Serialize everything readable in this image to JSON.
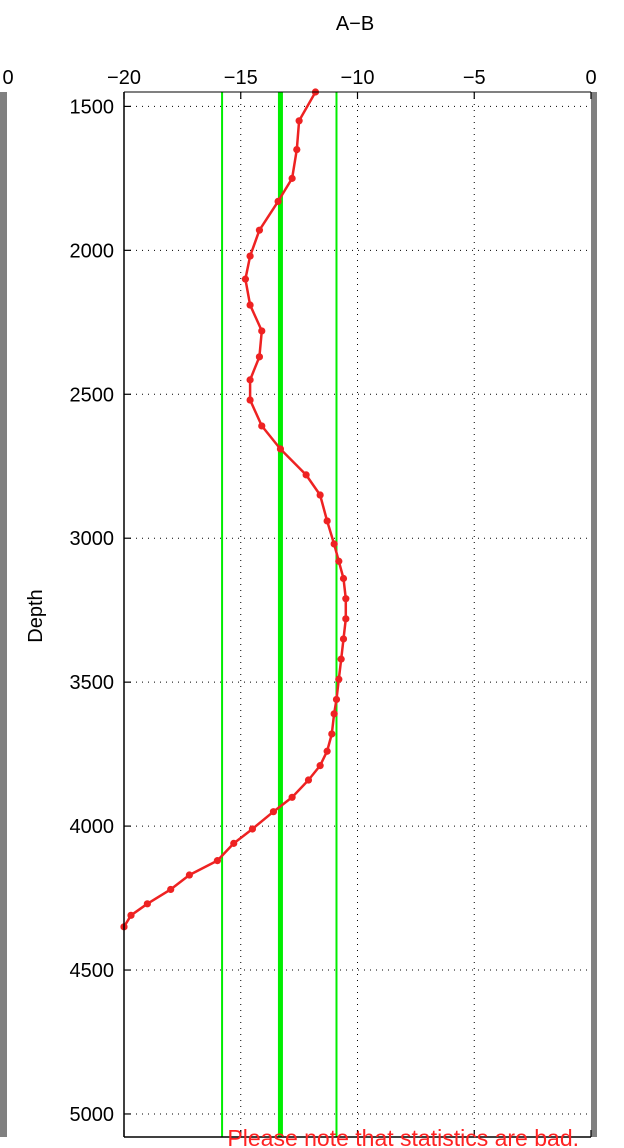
{
  "chart_data": {
    "type": "line",
    "title": "A−B",
    "xlabel": "",
    "ylabel": "Depth",
    "xlim": [
      -20,
      0
    ],
    "ylim": [
      1450,
      5080
    ],
    "y_reversed": true,
    "x_ticks": [
      -20,
      -15,
      -10,
      -5,
      0
    ],
    "x_tick_labels": [
      "−20",
      "−15",
      "−10",
      "−5",
      "0"
    ],
    "y_ticks": [
      1500,
      2000,
      2500,
      3000,
      3500,
      4000,
      4500,
      5000
    ],
    "y_tick_labels": [
      "1500",
      "2000",
      "2500",
      "3000",
      "3500",
      "4000",
      "4500",
      "5000"
    ],
    "left_clip_label": "0",
    "grid": true,
    "grid_style": "dotted",
    "series": [
      {
        "color": "#ee2222",
        "marker": "circle",
        "points": [
          [
            -11.8,
            1450
          ],
          [
            -12.5,
            1550
          ],
          [
            -12.6,
            1650
          ],
          [
            -12.8,
            1750
          ],
          [
            -13.4,
            1830
          ],
          [
            -14.2,
            1930
          ],
          [
            -14.6,
            2020
          ],
          [
            -14.8,
            2100
          ],
          [
            -14.6,
            2190
          ],
          [
            -14.1,
            2280
          ],
          [
            -14.2,
            2370
          ],
          [
            -14.6,
            2450
          ],
          [
            -14.6,
            2520
          ],
          [
            -14.1,
            2610
          ],
          [
            -13.3,
            2690
          ],
          [
            -12.2,
            2780
          ],
          [
            -11.6,
            2850
          ],
          [
            -11.3,
            2940
          ],
          [
            -11.0,
            3020
          ],
          [
            -10.8,
            3080
          ],
          [
            -10.6,
            3140
          ],
          [
            -10.5,
            3210
          ],
          [
            -10.5,
            3280
          ],
          [
            -10.6,
            3350
          ],
          [
            -10.7,
            3420
          ],
          [
            -10.8,
            3490
          ],
          [
            -10.9,
            3560
          ],
          [
            -11.0,
            3610
          ],
          [
            -11.1,
            3680
          ],
          [
            -11.3,
            3740
          ],
          [
            -11.6,
            3790
          ],
          [
            -12.1,
            3840
          ],
          [
            -12.8,
            3900
          ],
          [
            -13.6,
            3950
          ],
          [
            -14.5,
            4010
          ],
          [
            -15.3,
            4060
          ],
          [
            -16.0,
            4120
          ],
          [
            -17.2,
            4170
          ],
          [
            -18.0,
            4220
          ],
          [
            -19.0,
            4270
          ],
          [
            -19.7,
            4310
          ],
          [
            -20.0,
            4350
          ]
        ]
      }
    ],
    "reference_lines": [
      {
        "x": -15.8,
        "color": "#00ee00",
        "style": "thin"
      },
      {
        "x": -13.3,
        "color": "#00ee00",
        "style": "thick"
      },
      {
        "x": -10.9,
        "color": "#00ee00",
        "style": "thin"
      }
    ],
    "annotation": {
      "text": "Please note that statistics are bad.",
      "color": "#ff2222"
    }
  }
}
